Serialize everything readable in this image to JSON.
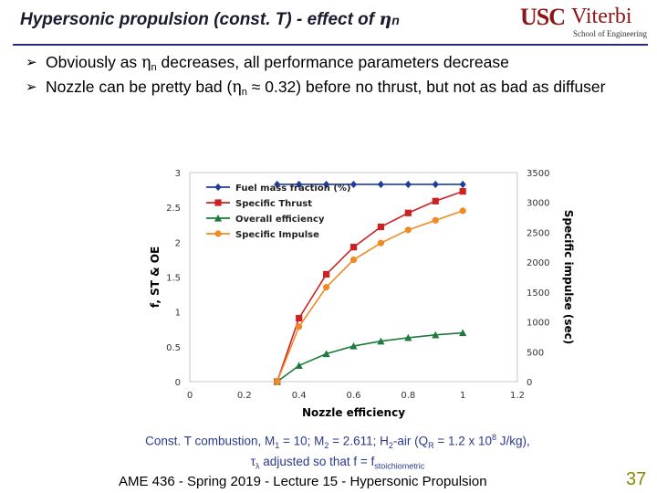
{
  "header": {
    "title_main": "Hypersonic propulsion (const. T) - effect of ",
    "title_eta": "η",
    "title_sub": "n"
  },
  "logo": {
    "usc": "USC",
    "viterbi": "Viterbi",
    "school": "School of Engineering"
  },
  "bullets": [
    {
      "part1": "Obviously as ",
      "eta": "η",
      "sub": "n",
      "part2": " decreases, all performance parameters decrease"
    },
    {
      "part1": "Nozzle can be pretty bad (",
      "eta": "η",
      "sub": "n",
      "part2": " ≈ 0.32) before no thrust, but not as bad as diffuser"
    }
  ],
  "caption": {
    "line1_a": "Const. T combustion, M",
    "line1_s1": "1",
    "line1_b": " = 10; M",
    "line1_s2": "2",
    "line1_c": " = 2.611; H",
    "line1_s3": "2",
    "line1_d": "-air (Q",
    "line1_s4": "R",
    "line1_e": " = 1.2 x 10",
    "line1_sup": "8",
    "line1_f": " J/kg),",
    "line2_tau": "τ",
    "line2_lam": "λ",
    "line2_a": " adjusted so that f = f",
    "line2_sub": "stoichiometric"
  },
  "footer": {
    "text": "AME 436 - Spring 2019 - Lecture 15 - Hypersonic Propulsion",
    "page": "37"
  },
  "chart_data": {
    "type": "line",
    "title": "",
    "xlabel": "Nozzle efficiency",
    "ylabel_left": "f, ST & OE",
    "ylabel_right": "Specific impulse (sec)",
    "xlim": [
      0,
      1.2
    ],
    "ylim_left": [
      0,
      3
    ],
    "ylim_right": [
      0,
      3500
    ],
    "x_ticks": [
      "0",
      "0.2",
      "0.4",
      "0.6",
      "0.8",
      "1",
      "1.2"
    ],
    "y_left_ticks": [
      "0",
      "0.5",
      "1",
      "1.5",
      "2",
      "2.5",
      "3"
    ],
    "y_right_ticks": [
      "0",
      "500",
      "1000",
      "1500",
      "2000",
      "2500",
      "3000",
      "3500"
    ],
    "legend_position": "top-left",
    "grid": false,
    "series": [
      {
        "name": "Fuel mass fraction (%)",
        "axis": "left",
        "color": "#1f3d99",
        "marker": "diamond",
        "x": [
          0.32,
          0.4,
          0.5,
          0.6,
          0.7,
          0.8,
          0.9,
          1.0
        ],
        "y": [
          2.83,
          2.83,
          2.83,
          2.83,
          2.83,
          2.83,
          2.83,
          2.83
        ]
      },
      {
        "name": "Specific Thrust",
        "axis": "left",
        "color": "#cc2222",
        "marker": "square",
        "x": [
          0.32,
          0.4,
          0.5,
          0.6,
          0.7,
          0.8,
          0.9,
          1.0
        ],
        "y": [
          0.0,
          0.91,
          1.54,
          1.93,
          2.22,
          2.42,
          2.59,
          2.73
        ]
      },
      {
        "name": "Overall efficiency",
        "axis": "left",
        "color": "#1e7a3c",
        "marker": "triangle",
        "x": [
          0.32,
          0.4,
          0.5,
          0.6,
          0.7,
          0.8,
          0.9,
          1.0
        ],
        "y": [
          0.0,
          0.23,
          0.4,
          0.51,
          0.58,
          0.63,
          0.67,
          0.7
        ]
      },
      {
        "name": "Specific Impulse",
        "axis": "right",
        "color": "#f08a24",
        "marker": "circle",
        "x": [
          0.32,
          0.4,
          0.5,
          0.6,
          0.7,
          0.8,
          0.9,
          1.0
        ],
        "y": [
          0,
          920,
          1580,
          2040,
          2320,
          2540,
          2700,
          2860
        ]
      }
    ]
  }
}
